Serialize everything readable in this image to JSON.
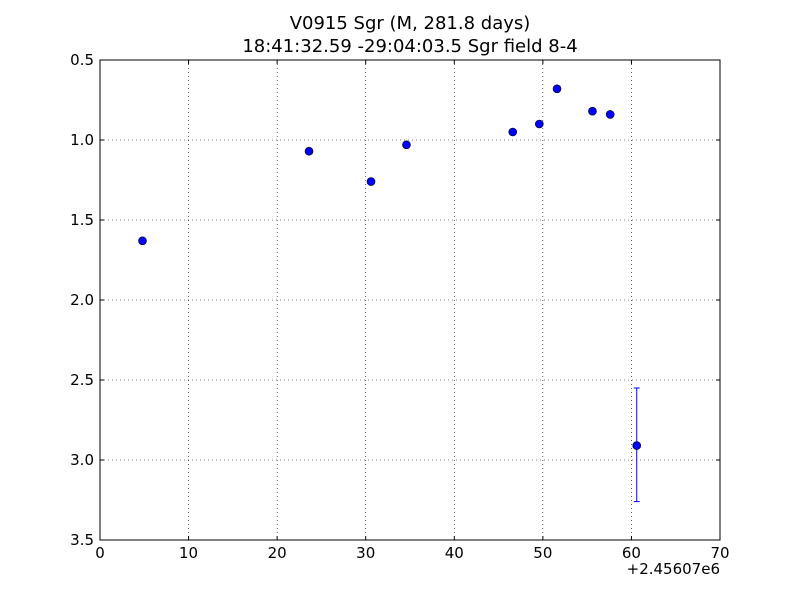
{
  "chart_data": {
    "type": "scatter",
    "title_line1": "V0915 Sgr  (M, 281.8 days)",
    "title_line2": "18:41:32.59 -29:04:03.5 Sgr field 8-4",
    "xlabel": "",
    "ylabel": "",
    "x_offset_label": "+2.45607e6",
    "xlim": [
      0,
      70
    ],
    "ylim": [
      0.5,
      3.5
    ],
    "y_inverted": true,
    "grid": true,
    "x_ticks": [
      0,
      10,
      20,
      30,
      40,
      50,
      60,
      70
    ],
    "y_ticks": [
      0.5,
      1.0,
      1.5,
      2.0,
      2.5,
      3.0,
      3.5
    ],
    "x_tick_labels": [
      "0",
      "10",
      "20",
      "30",
      "40",
      "50",
      "60",
      "70"
    ],
    "y_tick_labels": [
      "0.5",
      "1.0",
      "1.5",
      "2.0",
      "2.5",
      "3.0",
      "3.5"
    ],
    "marker_color": "#0000ff",
    "points": [
      {
        "x": 4.8,
        "y": 1.63
      },
      {
        "x": 23.6,
        "y": 1.07
      },
      {
        "x": 30.6,
        "y": 1.26
      },
      {
        "x": 34.6,
        "y": 1.03
      },
      {
        "x": 46.6,
        "y": 0.95
      },
      {
        "x": 49.6,
        "y": 0.9
      },
      {
        "x": 51.6,
        "y": 0.68
      },
      {
        "x": 55.6,
        "y": 0.82
      },
      {
        "x": 57.6,
        "y": 0.84
      },
      {
        "x": 60.6,
        "y": 2.91,
        "yerr_low": 2.55,
        "yerr_high": 3.26
      }
    ]
  }
}
